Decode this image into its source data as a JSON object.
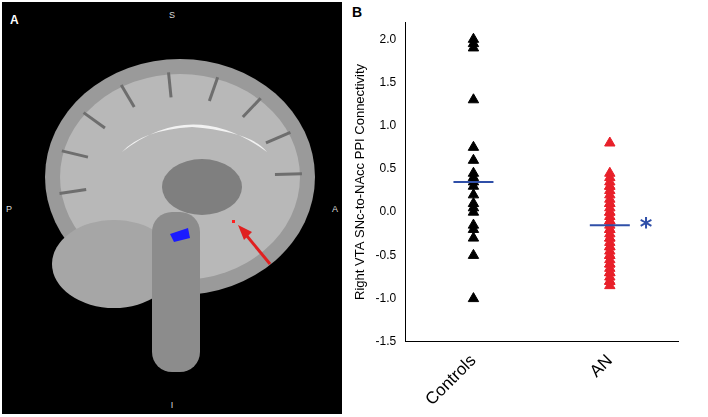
{
  "panel_a": {
    "panel_label": "A",
    "orientation_labels": {
      "top": "S",
      "bottom": "I",
      "left": "P",
      "right": "A"
    }
  },
  "chart_data": {
    "type": "scatter",
    "panel_label": "B",
    "y_label": "Right VTA SNc-to-NAcc PPI Connectivity",
    "categories": [
      "Controls",
      "AN"
    ],
    "values": [
      [
        2.0,
        1.95,
        1.9,
        1.3,
        0.75,
        0.6,
        0.45,
        0.4,
        0.35,
        0.3,
        0.2,
        0.1,
        0.05,
        0.0,
        -0.15,
        -0.2,
        -0.3,
        -0.5,
        -1.0
      ],
      [
        0.8,
        0.45,
        0.4,
        0.35,
        0.3,
        0.3,
        0.25,
        0.2,
        0.15,
        0.1,
        0.1,
        0.05,
        0.0,
        0.0,
        -0.05,
        -0.1,
        -0.1,
        -0.15,
        -0.2,
        -0.2,
        -0.25,
        -0.3,
        -0.3,
        -0.35,
        -0.4,
        -0.4,
        -0.45,
        -0.5,
        -0.5,
        -0.55,
        -0.6,
        -0.6,
        -0.65,
        -0.7,
        -0.7,
        -0.75,
        -0.8,
        -0.8,
        -0.85
      ]
    ],
    "colors": [
      "#000000",
      "#e8202a"
    ],
    "marker": "triangle",
    "means": {
      "values": [
        0.35,
        -0.15
      ],
      "color": "#2f4fa8",
      "marker": "line"
    },
    "annotations": [
      {
        "text": "*",
        "category": "AN",
        "y": -0.15,
        "color": "#2f4fa8"
      }
    ],
    "ylim": [
      -1.5,
      2.2
    ],
    "yticks": [
      -1.5,
      {
        "value": -1,
        "label": "-1.0"
      },
      -0.5,
      {
        "value": 0,
        "label": "0.0"
      },
      0.5,
      {
        "value": 1,
        "label": "1.0"
      },
      1.5,
      {
        "value": 2,
        "label": "2.0"
      }
    ],
    "grid": false,
    "legend": null
  }
}
